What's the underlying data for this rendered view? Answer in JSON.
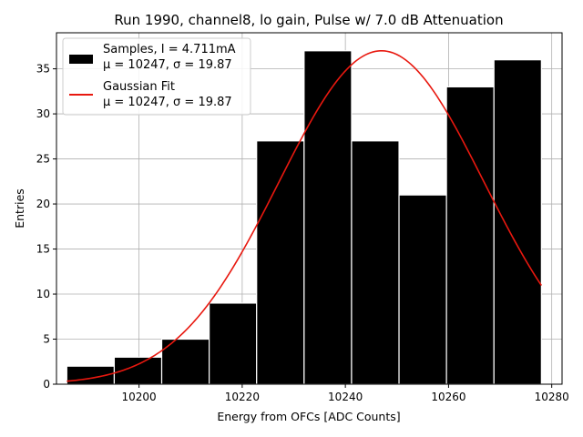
{
  "chart_data": {
    "type": "bar",
    "title": "Run 1990, channel8, lo gain, Pulse w/ 7.0 dB Attenuation",
    "xlabel": "Energy from OFCs [ADC Counts]",
    "ylabel": "Entries",
    "xlim": [
      10184,
      10282
    ],
    "ylim": [
      0,
      39
    ],
    "grid": true,
    "x_ticks": [
      "10200",
      "10220",
      "10240",
      "10260",
      "10280"
    ],
    "x_tick_values": [
      10200,
      10220,
      10240,
      10260,
      10280
    ],
    "y_ticks": [
      "0",
      "5",
      "10",
      "15",
      "20",
      "25",
      "30",
      "35"
    ],
    "y_tick_values": [
      0,
      5,
      10,
      15,
      20,
      25,
      30,
      35
    ],
    "bins": [
      {
        "left": 10186.0,
        "right": 10195.2,
        "count": 2
      },
      {
        "left": 10195.2,
        "right": 10204.4,
        "count": 3
      },
      {
        "left": 10204.4,
        "right": 10213.6,
        "count": 5
      },
      {
        "left": 10213.6,
        "right": 10222.8,
        "count": 9
      },
      {
        "left": 10222.8,
        "right": 10232.0,
        "count": 27
      },
      {
        "left": 10232.0,
        "right": 10241.2,
        "count": 37
      },
      {
        "left": 10241.2,
        "right": 10250.4,
        "count": 27
      },
      {
        "left": 10250.4,
        "right": 10259.6,
        "count": 21
      },
      {
        "left": 10259.6,
        "right": 10268.8,
        "count": 33
      },
      {
        "left": 10268.8,
        "right": 10278.0,
        "count": 36
      }
    ],
    "fit": {
      "type": "gaussian",
      "amplitude": 37,
      "mu": 10247,
      "sigma": 19.87,
      "x_range": [
        10186,
        10278
      ]
    },
    "colors": {
      "bars": "#000000",
      "bar_edge": "#ffffff",
      "fit": "#e8180f",
      "grid": "#b0b0b0"
    },
    "legend": {
      "position": "top-left",
      "entries": [
        {
          "line1": "Samples, I = 4.711mA",
          "line2": "μ = 10247, σ = 19.87",
          "kind": "patch"
        },
        {
          "line1": "Gaussian Fit",
          "line2": "μ = 10247, σ = 19.87",
          "kind": "line"
        }
      ]
    }
  }
}
